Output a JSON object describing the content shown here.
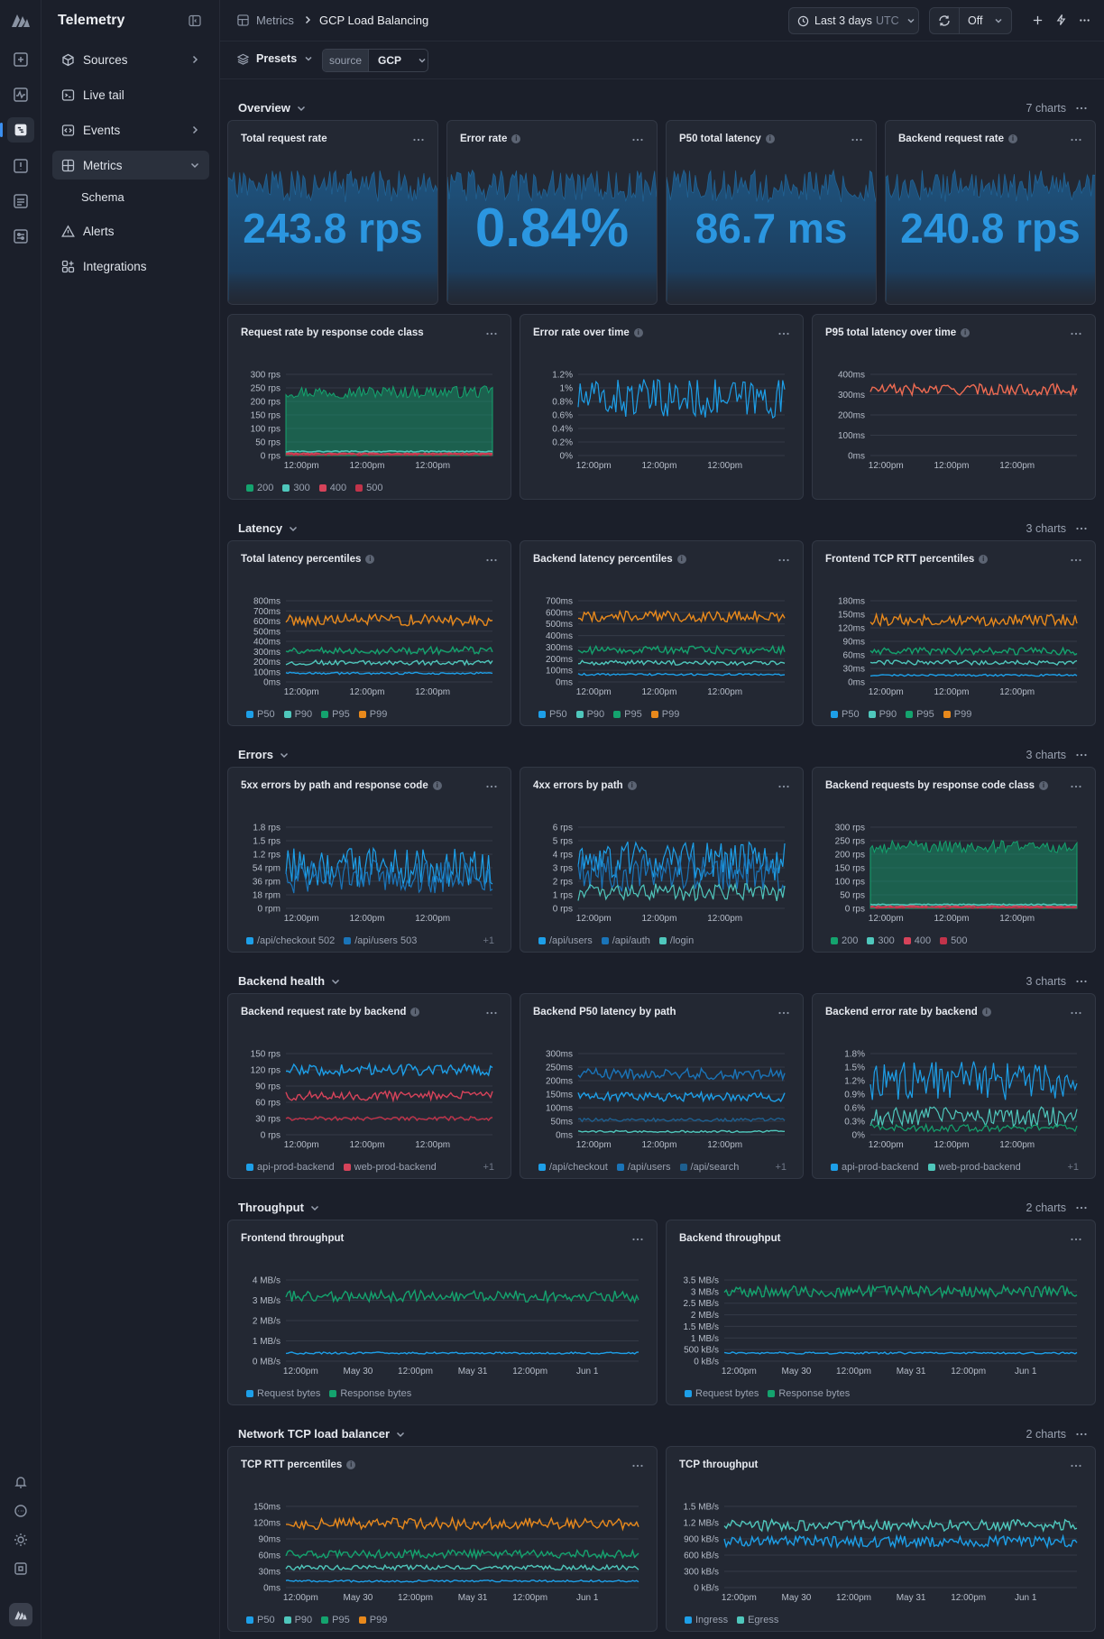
{
  "app": {
    "title": "Telemetry"
  },
  "nav": [
    {
      "label": "Sources",
      "icon": "cube-icon",
      "chevron": "right"
    },
    {
      "label": "Live tail",
      "icon": "terminal-icon"
    },
    {
      "label": "Events",
      "icon": "code-icon",
      "chevron": "right"
    },
    {
      "label": "Metrics",
      "icon": "grid-icon",
      "chevron": "down",
      "active": true
    },
    {
      "label": "Schema",
      "sub": true
    },
    {
      "label": "Alerts",
      "icon": "alert-triangle-icon"
    },
    {
      "label": "Integrations",
      "icon": "integrations-icon"
    }
  ],
  "breadcrumb": {
    "root": "Metrics",
    "current": "GCP Load Balancing"
  },
  "time_range": {
    "label": "Last 3 days",
    "tz": "UTC"
  },
  "refresh": {
    "label": "Off"
  },
  "filters": {
    "presets": "Presets",
    "source_key": "source",
    "source_value": "GCP"
  },
  "colors": {
    "accent": "#3b8ff0",
    "blue": "#1d9fe8",
    "teal": "#4fc7bc",
    "green": "#14a36e",
    "orange": "#e8891c",
    "red": "#d6435a",
    "coral": "#ef6b52"
  },
  "sections": [
    {
      "title": "Overview",
      "count": "7 charts"
    },
    {
      "title": "Latency",
      "count": "3 charts"
    },
    {
      "title": "Errors",
      "count": "3 charts"
    },
    {
      "title": "Backend health",
      "count": "3 charts"
    },
    {
      "title": "Throughput",
      "count": "2 charts"
    },
    {
      "title": "Network TCP load balancer",
      "count": "2 charts"
    }
  ],
  "stats": [
    {
      "title": "Total request rate",
      "value": "243.8 rps",
      "info": false
    },
    {
      "title": "Error rate",
      "value": "0.84%",
      "info": true
    },
    {
      "title": "P50 total latency",
      "value": "86.7 ms",
      "info": true
    },
    {
      "title": "Backend request rate",
      "value": "240.8 rps",
      "info": true
    }
  ],
  "chart_data": [
    {
      "id": "req_by_code",
      "title": "Request rate by response code class",
      "type": "area",
      "info": false,
      "yticks": [
        "300 rps",
        "250 rps",
        "200 rps",
        "150 rps",
        "100 rps",
        "50 rps",
        "0 rps"
      ],
      "ylim": [
        0,
        300
      ],
      "xticks": [
        "12:00pm",
        "12:00pm",
        "12:00pm"
      ],
      "series": [
        {
          "name": "200",
          "color": "#14a36e",
          "values": [
            235
          ]
        },
        {
          "name": "300",
          "color": "#4fc7bc",
          "values": [
            15
          ]
        },
        {
          "name": "400",
          "color": "#d6435a",
          "values": [
            7
          ]
        },
        {
          "name": "500",
          "color": "#c1334a",
          "values": [
            3
          ]
        }
      ]
    },
    {
      "id": "err_over_time",
      "title": "Error rate over time",
      "type": "line",
      "info": true,
      "yticks": [
        "1.2%",
        "1%",
        "0.8%",
        "0.6%",
        "0.4%",
        "0.2%",
        "0%"
      ],
      "ylim": [
        0,
        1.2
      ],
      "xticks": [
        "12:00pm",
        "12:00pm",
        "12:00pm"
      ],
      "series": [
        {
          "name": "",
          "color": "#1d9fe8",
          "values": [
            0.84
          ]
        }
      ]
    },
    {
      "id": "p95_over_time",
      "title": "P95 total latency over time",
      "type": "line",
      "info": true,
      "yticks": [
        "400ms",
        "300ms",
        "200ms",
        "100ms",
        "0ms"
      ],
      "ylim": [
        0,
        400
      ],
      "xticks": [
        "12:00pm",
        "12:00pm",
        "12:00pm"
      ],
      "series": [
        {
          "name": "",
          "color": "#ef6b52",
          "values": [
            325
          ]
        }
      ]
    },
    {
      "id": "total_lat_pct",
      "title": "Total latency percentiles",
      "type": "line",
      "info": true,
      "yticks": [
        "800ms",
        "700ms",
        "600ms",
        "500ms",
        "400ms",
        "300ms",
        "200ms",
        "100ms",
        "0ms"
      ],
      "ylim": [
        0,
        800
      ],
      "xticks": [
        "12:00pm",
        "12:00pm",
        "12:00pm"
      ],
      "series": [
        {
          "name": "P50",
          "color": "#1d9fe8",
          "values": [
            85
          ]
        },
        {
          "name": "P90",
          "color": "#4fc7bc",
          "values": [
            190
          ]
        },
        {
          "name": "P95",
          "color": "#14a36e",
          "values": [
            310
          ]
        },
        {
          "name": "P99",
          "color": "#e8891c",
          "values": [
            610
          ]
        }
      ]
    },
    {
      "id": "backend_lat_pct",
      "title": "Backend latency percentiles",
      "type": "line",
      "info": true,
      "yticks": [
        "700ms",
        "600ms",
        "500ms",
        "400ms",
        "300ms",
        "200ms",
        "100ms",
        "0ms"
      ],
      "ylim": [
        0,
        700
      ],
      "xticks": [
        "12:00pm",
        "12:00pm",
        "12:00pm"
      ],
      "series": [
        {
          "name": "P50",
          "color": "#1d9fe8",
          "values": [
            65
          ]
        },
        {
          "name": "P90",
          "color": "#4fc7bc",
          "values": [
            165
          ]
        },
        {
          "name": "P95",
          "color": "#14a36e",
          "values": [
            275
          ]
        },
        {
          "name": "P99",
          "color": "#e8891c",
          "values": [
            565
          ]
        }
      ]
    },
    {
      "id": "frontend_rtt_pct",
      "title": "Frontend TCP RTT percentiles",
      "type": "line",
      "info": true,
      "yticks": [
        "180ms",
        "150ms",
        "120ms",
        "90ms",
        "60ms",
        "30ms",
        "0ms"
      ],
      "ylim": [
        0,
        180
      ],
      "xticks": [
        "12:00pm",
        "12:00pm",
        "12:00pm"
      ],
      "series": [
        {
          "name": "P50",
          "color": "#1d9fe8",
          "values": [
            15
          ]
        },
        {
          "name": "P90",
          "color": "#4fc7bc",
          "values": [
            43
          ]
        },
        {
          "name": "P95",
          "color": "#14a36e",
          "values": [
            68
          ]
        },
        {
          "name": "P99",
          "color": "#e8891c",
          "values": [
            137
          ]
        }
      ]
    },
    {
      "id": "5xx_by_path",
      "title": "5xx errors by path and response code",
      "type": "line",
      "info": true,
      "yticks": [
        "1.8 rps",
        "1.5 rps",
        "1.2 rps",
        "54 rpm",
        "36 rpm",
        "18 rpm",
        "0 rpm"
      ],
      "ylim": [
        0,
        1.8
      ],
      "xticks": [
        "12:00pm",
        "12:00pm",
        "12:00pm"
      ],
      "series": [
        {
          "name": "/api/checkout 502",
          "color": "#1d9fe8",
          "values": [
            0.9
          ]
        },
        {
          "name": "/api/users 503",
          "color": "#1a74b8",
          "values": [
            0.7
          ]
        }
      ],
      "more": "+1"
    },
    {
      "id": "4xx_by_path",
      "title": "4xx errors by path",
      "type": "line",
      "info": true,
      "yticks": [
        "6 rps",
        "5 rps",
        "4 rps",
        "3 rps",
        "2 rps",
        "1 rps",
        "0 rps"
      ],
      "ylim": [
        0,
        6
      ],
      "xticks": [
        "12:00pm",
        "12:00pm",
        "12:00pm"
      ],
      "series": [
        {
          "name": "/api/users",
          "color": "#1d9fe8",
          "values": [
            3.5
          ]
        },
        {
          "name": "/api/auth",
          "color": "#1a74b8",
          "values": [
            2.6
          ]
        },
        {
          "name": "/login",
          "color": "#4fc7bc",
          "values": [
            1.2
          ]
        }
      ]
    },
    {
      "id": "backend_req_by_code",
      "title": "Backend requests by response code class",
      "type": "area",
      "info": true,
      "yticks": [
        "300 rps",
        "250 rps",
        "200 rps",
        "150 rps",
        "100 rps",
        "50 rps",
        "0 rps"
      ],
      "ylim": [
        0,
        300
      ],
      "xticks": [
        "12:00pm",
        "12:00pm",
        "12:00pm"
      ],
      "series": [
        {
          "name": "200",
          "color": "#14a36e",
          "values": [
            228
          ]
        },
        {
          "name": "300",
          "color": "#4fc7bc",
          "values": [
            14
          ]
        },
        {
          "name": "400",
          "color": "#d6435a",
          "values": [
            7
          ]
        },
        {
          "name": "500",
          "color": "#c1334a",
          "values": [
            3
          ]
        }
      ]
    },
    {
      "id": "backend_req_by_backend",
      "title": "Backend request rate by backend",
      "type": "line",
      "info": true,
      "yticks": [
        "150 rps",
        "120 rps",
        "90 rps",
        "60 rps",
        "30 rps",
        "0 rps"
      ],
      "ylim": [
        0,
        150
      ],
      "xticks": [
        "12:00pm",
        "12:00pm",
        "12:00pm"
      ],
      "series": [
        {
          "name": "api-prod-backend",
          "color": "#1d9fe8",
          "values": [
            120
          ]
        },
        {
          "name": "web-prod-backend",
          "color": "#d6435a",
          "values": [
            72
          ]
        },
        {
          "name": "",
          "color": "#c1334a",
          "values": [
            30
          ]
        }
      ],
      "more": "+1"
    },
    {
      "id": "backend_p50_by_path",
      "title": "Backend P50 latency by path",
      "type": "line",
      "info": false,
      "yticks": [
        "300ms",
        "250ms",
        "200ms",
        "150ms",
        "100ms",
        "50ms",
        "0ms"
      ],
      "ylim": [
        0,
        300
      ],
      "xticks": [
        "12:00pm",
        "12:00pm",
        "12:00pm"
      ],
      "series": [
        {
          "name": "/api/checkout",
          "color": "#1d9fe8",
          "values": [
            140
          ]
        },
        {
          "name": "/api/users",
          "color": "#1a74b8",
          "values": [
            225
          ]
        },
        {
          "name": "/api/search",
          "color": "#1e5f8f",
          "values": [
            55
          ]
        },
        {
          "name": "",
          "color": "#4fc7bc",
          "values": [
            12
          ]
        }
      ],
      "more": "+1"
    },
    {
      "id": "backend_err_by_backend",
      "title": "Backend error rate by backend",
      "type": "line",
      "info": true,
      "yticks": [
        "1.8%",
        "1.5%",
        "1.2%",
        "0.9%",
        "0.6%",
        "0.3%",
        "0%"
      ],
      "ylim": [
        0,
        1.8
      ],
      "xticks": [
        "12:00pm",
        "12:00pm",
        "12:00pm"
      ],
      "series": [
        {
          "name": "api-prod-backend",
          "color": "#1d9fe8",
          "values": [
            1.2
          ]
        },
        {
          "name": "web-prod-backend",
          "color": "#4fc7bc",
          "values": [
            0.4
          ]
        },
        {
          "name": "",
          "color": "#14a36e",
          "values": [
            0.15
          ]
        }
      ],
      "more": "+1"
    },
    {
      "id": "frontend_throughput",
      "title": "Frontend throughput",
      "type": "line",
      "info": false,
      "yticks": [
        "4 MB/s",
        "3 MB/s",
        "2 MB/s",
        "1 MB/s",
        "0 MB/s"
      ],
      "ylim": [
        0,
        4
      ],
      "xticks": [
        "12:00pm",
        "May 30",
        "12:00pm",
        "May 31",
        "12:00pm",
        "Jun 1"
      ],
      "series": [
        {
          "name": "Request bytes",
          "color": "#1d9fe8",
          "values": [
            0.4
          ]
        },
        {
          "name": "Response bytes",
          "color": "#14a36e",
          "values": [
            3.2
          ]
        }
      ]
    },
    {
      "id": "backend_throughput",
      "title": "Backend throughput",
      "type": "line",
      "info": false,
      "yticks": [
        "3.5 MB/s",
        "3 MB/s",
        "2.5 MB/s",
        "2 MB/s",
        "1.5 MB/s",
        "1 MB/s",
        "500 kB/s",
        "0 kB/s"
      ],
      "ylim": [
        0,
        3.5
      ],
      "xticks": [
        "12:00pm",
        "May 30",
        "12:00pm",
        "May 31",
        "12:00pm",
        "Jun 1"
      ],
      "series": [
        {
          "name": "Request bytes",
          "color": "#1d9fe8",
          "values": [
            0.35
          ]
        },
        {
          "name": "Response bytes",
          "color": "#14a36e",
          "values": [
            3.0
          ]
        }
      ]
    },
    {
      "id": "tcp_rtt_pct",
      "title": "TCP RTT percentiles",
      "type": "line",
      "info": true,
      "yticks": [
        "150ms",
        "120ms",
        "90ms",
        "60ms",
        "30ms",
        "0ms"
      ],
      "ylim": [
        0,
        150
      ],
      "xticks": [
        "12:00pm",
        "May 30",
        "12:00pm",
        "May 31",
        "12:00pm",
        "Jun 1"
      ],
      "series": [
        {
          "name": "P50",
          "color": "#1d9fe8",
          "values": [
            12
          ]
        },
        {
          "name": "P90",
          "color": "#4fc7bc",
          "values": [
            37
          ]
        },
        {
          "name": "P95",
          "color": "#14a36e",
          "values": [
            62
          ]
        },
        {
          "name": "P99",
          "color": "#e8891c",
          "values": [
            118
          ]
        }
      ]
    },
    {
      "id": "tcp_throughput",
      "title": "TCP throughput",
      "type": "line",
      "info": false,
      "yticks": [
        "1.5 MB/s",
        "1.2 MB/s",
        "900 kB/s",
        "600 kB/s",
        "300 kB/s",
        "0 kB/s"
      ],
      "ylim": [
        0,
        1.5
      ],
      "xticks": [
        "12:00pm",
        "May 30",
        "12:00pm",
        "May 31",
        "12:00pm",
        "Jun 1"
      ],
      "series": [
        {
          "name": "Ingress",
          "color": "#1d9fe8",
          "values": [
            0.85
          ]
        },
        {
          "name": "Egress",
          "color": "#4fc7bc",
          "values": [
            1.15
          ]
        }
      ]
    }
  ]
}
